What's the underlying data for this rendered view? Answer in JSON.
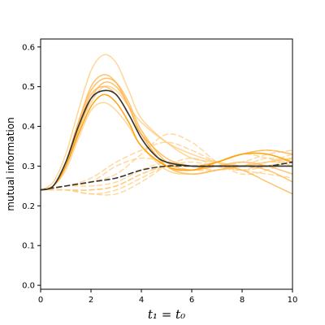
{
  "chart_data": {
    "type": "line",
    "title": "",
    "xlabel": "t₁ = t₀",
    "ylabel": "mutual information",
    "xlim": [
      0,
      10
    ],
    "ylim": [
      -0.01,
      0.62
    ],
    "xticks": [
      0,
      2,
      4,
      6,
      8,
      10
    ],
    "yticks": [
      0.0,
      0.1,
      0.2,
      0.3,
      0.4,
      0.5,
      0.6
    ],
    "grid": false,
    "legend": "none",
    "colors": {
      "solid_light": "#ffcc80",
      "solid_mid": "#ffb347",
      "solid_dark": "#ffa000",
      "dashed": "#ffcc80",
      "mean": "#333333"
    },
    "series": [
      {
        "style": "solid",
        "shade": "light",
        "x": [
          0,
          0.5,
          1,
          1.5,
          2,
          2.5,
          3,
          3.5,
          4,
          5,
          6,
          7,
          8,
          9,
          10
        ],
        "y": [
          0.24,
          0.26,
          0.33,
          0.44,
          0.54,
          0.58,
          0.56,
          0.49,
          0.42,
          0.36,
          0.32,
          0.31,
          0.3,
          0.3,
          0.3
        ]
      },
      {
        "style": "solid",
        "shade": "light",
        "x": [
          0,
          0.5,
          1,
          1.5,
          2,
          2.5,
          3,
          3.5,
          4,
          5,
          6,
          7,
          8,
          9,
          10
        ],
        "y": [
          0.24,
          0.25,
          0.3,
          0.39,
          0.46,
          0.5,
          0.49,
          0.45,
          0.41,
          0.36,
          0.33,
          0.31,
          0.3,
          0.31,
          0.32
        ]
      },
      {
        "style": "solid",
        "shade": "light",
        "x": [
          0,
          0.5,
          1,
          1.5,
          2,
          2.5,
          3,
          3.5,
          4,
          5,
          6,
          7,
          8,
          9,
          10
        ],
        "y": [
          0.24,
          0.25,
          0.29,
          0.37,
          0.44,
          0.46,
          0.44,
          0.4,
          0.35,
          0.29,
          0.28,
          0.29,
          0.3,
          0.31,
          0.32
        ]
      },
      {
        "style": "solid",
        "shade": "mid",
        "x": [
          0,
          0.5,
          1,
          1.5,
          2,
          2.5,
          3,
          3.5,
          4,
          5,
          6,
          7,
          8,
          9,
          10
        ],
        "y": [
          0.24,
          0.25,
          0.3,
          0.39,
          0.47,
          0.51,
          0.5,
          0.45,
          0.38,
          0.3,
          0.29,
          0.3,
          0.31,
          0.3,
          0.28
        ]
      },
      {
        "style": "solid",
        "shade": "mid",
        "x": [
          0,
          0.5,
          1,
          1.5,
          2,
          2.5,
          3,
          3.5,
          4,
          5,
          6,
          7,
          8,
          9,
          10
        ],
        "y": [
          0.24,
          0.25,
          0.31,
          0.41,
          0.49,
          0.52,
          0.51,
          0.46,
          0.39,
          0.31,
          0.29,
          0.3,
          0.29,
          0.26,
          0.23
        ]
      },
      {
        "style": "solid",
        "shade": "mid",
        "x": [
          0,
          0.5,
          1,
          1.5,
          2,
          2.5,
          3,
          3.5,
          4,
          5,
          6,
          7,
          8,
          9,
          10
        ],
        "y": [
          0.24,
          0.25,
          0.3,
          0.4,
          0.48,
          0.5,
          0.48,
          0.43,
          0.38,
          0.32,
          0.3,
          0.31,
          0.33,
          0.34,
          0.33
        ]
      },
      {
        "style": "solid",
        "shade": "mid",
        "x": [
          0,
          0.5,
          1,
          1.5,
          2,
          2.5,
          3,
          3.5,
          4,
          5,
          6,
          7,
          8,
          9,
          10
        ],
        "y": [
          0.24,
          0.25,
          0.31,
          0.41,
          0.5,
          0.53,
          0.51,
          0.45,
          0.38,
          0.3,
          0.28,
          0.29,
          0.3,
          0.29,
          0.26
        ]
      },
      {
        "style": "solid",
        "shade": "dark",
        "x": [
          0,
          0.5,
          1,
          1.5,
          2,
          2.5,
          3,
          3.5,
          4,
          5,
          6,
          7,
          8,
          9,
          10
        ],
        "y": [
          0.24,
          0.25,
          0.3,
          0.38,
          0.45,
          0.48,
          0.46,
          0.41,
          0.35,
          0.3,
          0.29,
          0.31,
          0.33,
          0.33,
          0.31
        ]
      },
      {
        "style": "dashed",
        "x": [
          0,
          1,
          2,
          3,
          4,
          5,
          6,
          7,
          8,
          9,
          10
        ],
        "y": [
          0.24,
          0.25,
          0.26,
          0.3,
          0.32,
          0.31,
          0.3,
          0.31,
          0.33,
          0.34,
          0.33
        ]
      },
      {
        "style": "dashed",
        "x": [
          0,
          1,
          2,
          3,
          4,
          5,
          6,
          7,
          8,
          9,
          10
        ],
        "y": [
          0.24,
          0.24,
          0.24,
          0.25,
          0.28,
          0.3,
          0.3,
          0.31,
          0.33,
          0.32,
          0.3
        ]
      },
      {
        "style": "dashed",
        "x": [
          0,
          1,
          2,
          3,
          4,
          5,
          6,
          7,
          8,
          9,
          10
        ],
        "y": [
          0.24,
          0.24,
          0.23,
          0.24,
          0.27,
          0.3,
          0.31,
          0.3,
          0.29,
          0.3,
          0.32
        ]
      },
      {
        "style": "dashed",
        "x": [
          0,
          1,
          2,
          3,
          4,
          5,
          6,
          7,
          8,
          9,
          10
        ],
        "y": [
          0.24,
          0.24,
          0.23,
          0.23,
          0.26,
          0.3,
          0.32,
          0.3,
          0.29,
          0.31,
          0.33
        ]
      },
      {
        "style": "dashed",
        "x": [
          0,
          1,
          2,
          3,
          4,
          5,
          6,
          7,
          8,
          9,
          10
        ],
        "y": [
          0.24,
          0.25,
          0.25,
          0.26,
          0.29,
          0.31,
          0.3,
          0.29,
          0.3,
          0.32,
          0.31
        ]
      },
      {
        "style": "dashed",
        "x": [
          0,
          1,
          2,
          3,
          4,
          5,
          6,
          7,
          8,
          9,
          10
        ],
        "y": [
          0.24,
          0.25,
          0.27,
          0.31,
          0.34,
          0.36,
          0.34,
          0.31,
          0.29,
          0.28,
          0.27
        ]
      },
      {
        "style": "dashed",
        "x": [
          0,
          1,
          2,
          3,
          4,
          5,
          6,
          7,
          8,
          9,
          10
        ],
        "y": [
          0.24,
          0.25,
          0.26,
          0.28,
          0.33,
          0.38,
          0.36,
          0.31,
          0.28,
          0.29,
          0.32
        ]
      },
      {
        "style": "dashed",
        "x": [
          0,
          1,
          2,
          3,
          4,
          5,
          6,
          7,
          8,
          9,
          10
        ],
        "y": [
          0.24,
          0.24,
          0.24,
          0.25,
          0.28,
          0.3,
          0.3,
          0.3,
          0.31,
          0.33,
          0.34
        ]
      },
      {
        "style": "dashed",
        "x": [
          0,
          1,
          2,
          3,
          4,
          5,
          6,
          7,
          8,
          9,
          10
        ],
        "y": [
          0.24,
          0.24,
          0.24,
          0.25,
          0.28,
          0.3,
          0.29,
          0.29,
          0.3,
          0.31,
          0.31
        ]
      },
      {
        "style": "mean_solid",
        "x": [
          0,
          0.5,
          1,
          1.5,
          2,
          2.5,
          3,
          3.5,
          4,
          4.5,
          5,
          6,
          7,
          8,
          9,
          10
        ],
        "y": [
          0.24,
          0.25,
          0.31,
          0.4,
          0.47,
          0.49,
          0.48,
          0.43,
          0.37,
          0.33,
          0.31,
          0.3,
          0.3,
          0.3,
          0.3,
          0.3
        ]
      },
      {
        "style": "mean_dashed",
        "x": [
          0,
          1,
          2,
          3,
          4,
          5,
          6,
          7,
          8,
          9,
          10
        ],
        "y": [
          0.24,
          0.25,
          0.26,
          0.27,
          0.29,
          0.3,
          0.3,
          0.3,
          0.3,
          0.3,
          0.31
        ]
      }
    ]
  }
}
